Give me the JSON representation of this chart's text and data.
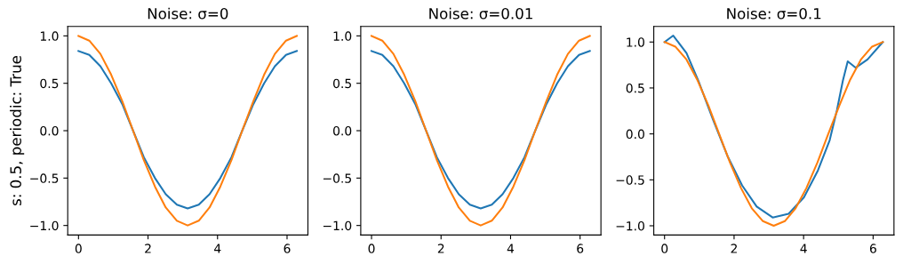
{
  "chart_data": [
    {
      "type": "line",
      "title": "Noise: σ=0",
      "ylabel": "s: 0.5, periodic: True",
      "xlim": [
        -0.31,
        6.6
      ],
      "ylim": [
        -1.1,
        1.1
      ],
      "xticks": [
        0,
        2,
        4,
        6
      ],
      "yticks": [
        {
          "value": -1,
          "label": "−1.0"
        },
        {
          "value": -0.5,
          "label": "−0.5"
        },
        {
          "value": 0,
          "label": "0.0"
        },
        {
          "value": 0.5,
          "label": "0.5"
        },
        {
          "value": 1,
          "label": "1.0"
        }
      ],
      "grid": false,
      "x": [
        0,
        0.31,
        0.63,
        0.94,
        1.26,
        1.57,
        1.88,
        2.2,
        2.51,
        2.83,
        3.14,
        3.46,
        3.77,
        4.08,
        4.4,
        4.71,
        5.03,
        5.34,
        5.65,
        5.97,
        6.28
      ],
      "series": [
        {
          "color": "#1f77b4",
          "values": [
            0.84,
            0.8,
            0.68,
            0.5,
            0.28,
            0.0,
            -0.28,
            -0.5,
            -0.67,
            -0.78,
            -0.82,
            -0.78,
            -0.67,
            -0.5,
            -0.28,
            0.0,
            0.28,
            0.5,
            0.68,
            0.8,
            0.84
          ]
        },
        {
          "color": "#ff7f0e",
          "values": [
            1,
            0.95,
            0.81,
            0.59,
            0.31,
            0,
            -0.31,
            -0.59,
            -0.81,
            -0.95,
            -1,
            -0.95,
            -0.81,
            -0.59,
            -0.31,
            0,
            0.31,
            0.59,
            0.81,
            0.95,
            1
          ]
        }
      ]
    },
    {
      "type": "line",
      "title": "Noise: σ=0.01",
      "xlim": [
        -0.31,
        6.6
      ],
      "ylim": [
        -1.1,
        1.1
      ],
      "xticks": [
        0,
        2,
        4,
        6
      ],
      "yticks": [
        {
          "value": -1,
          "label": "−1.0"
        },
        {
          "value": -0.5,
          "label": "−0.5"
        },
        {
          "value": 0,
          "label": "0.0"
        },
        {
          "value": 0.5,
          "label": "0.5"
        },
        {
          "value": 1,
          "label": "1.0"
        }
      ],
      "grid": false,
      "x": [
        0,
        0.31,
        0.63,
        0.94,
        1.26,
        1.57,
        1.88,
        2.2,
        2.51,
        2.83,
        3.14,
        3.46,
        3.77,
        4.08,
        4.4,
        4.71,
        5.03,
        5.34,
        5.65,
        5.97,
        6.28
      ],
      "series": [
        {
          "color": "#1f77b4",
          "values": [
            0.84,
            0.8,
            0.68,
            0.5,
            0.28,
            0.0,
            -0.28,
            -0.5,
            -0.67,
            -0.78,
            -0.82,
            -0.78,
            -0.67,
            -0.5,
            -0.28,
            0.0,
            0.28,
            0.5,
            0.68,
            0.8,
            0.84
          ]
        },
        {
          "color": "#ff7f0e",
          "values": [
            1,
            0.95,
            0.81,
            0.59,
            0.31,
            0,
            -0.31,
            -0.59,
            -0.81,
            -0.95,
            -1,
            -0.95,
            -0.81,
            -0.59,
            -0.31,
            0,
            0.31,
            0.59,
            0.81,
            0.95,
            1
          ]
        }
      ]
    },
    {
      "type": "line",
      "title": "Noise: σ=0.1",
      "xlim": [
        -0.31,
        6.6
      ],
      "ylim": [
        -1.1,
        1.17
      ],
      "xticks": [
        0,
        2,
        4,
        6
      ],
      "yticks": [
        {
          "value": -1,
          "label": "−1.0"
        },
        {
          "value": -0.5,
          "label": "−0.5"
        },
        {
          "value": 0,
          "label": "0.0"
        },
        {
          "value": 0.5,
          "label": "0.5"
        },
        {
          "value": 1,
          "label": "1.0"
        }
      ],
      "grid": false,
      "series": [
        {
          "color": "#1f77b4",
          "x": [
            0,
            0.25,
            0.63,
            0.97,
            1.39,
            1.81,
            2.23,
            2.65,
            3.11,
            3.57,
            4.01,
            4.41,
            4.75,
            4.96,
            5.13,
            5.27,
            5.5,
            5.84,
            6.28
          ],
          "values": [
            1.0,
            1.07,
            0.88,
            0.58,
            0.16,
            -0.24,
            -0.56,
            -0.79,
            -0.91,
            -0.87,
            -0.69,
            -0.4,
            -0.07,
            0.26,
            0.58,
            0.79,
            0.72,
            0.81,
            1.0
          ]
        },
        {
          "color": "#ff7f0e",
          "x": [
            0,
            0.31,
            0.63,
            0.94,
            1.26,
            1.57,
            1.88,
            2.2,
            2.51,
            2.83,
            3.14,
            3.46,
            3.77,
            4.08,
            4.4,
            4.71,
            5.03,
            5.34,
            5.65,
            5.97,
            6.28
          ],
          "values": [
            1,
            0.95,
            0.81,
            0.59,
            0.31,
            0,
            -0.31,
            -0.59,
            -0.81,
            -0.95,
            -1,
            -0.95,
            -0.81,
            -0.59,
            -0.31,
            0,
            0.31,
            0.59,
            0.81,
            0.95,
            1
          ]
        }
      ]
    }
  ]
}
